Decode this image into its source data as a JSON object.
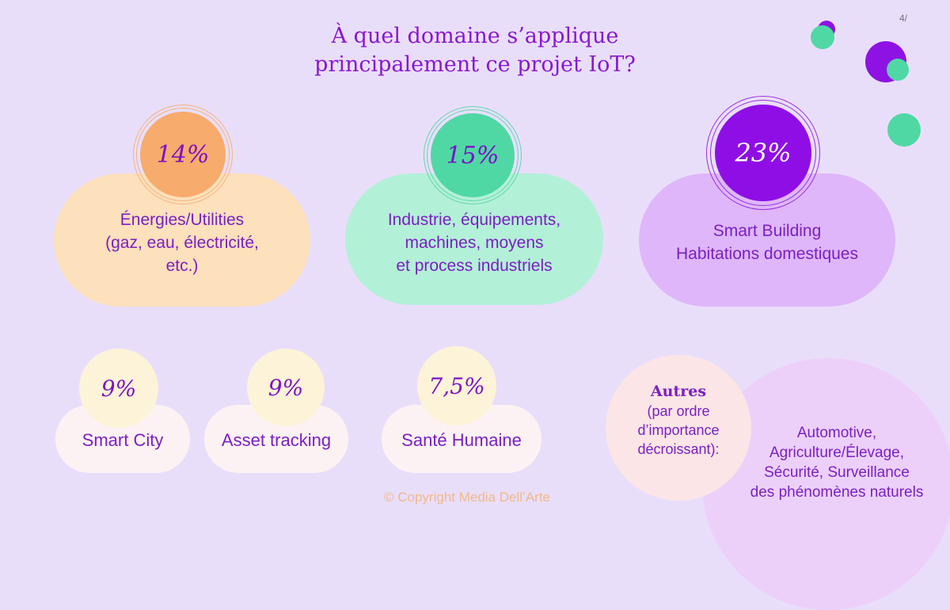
{
  "slide_number": "4/",
  "title_line1": "À quel domaine s’applique",
  "title_line2": "principalement ce projet IoT?",
  "cards": [
    {
      "percent": "14%",
      "line1": "Énergies/Utilities",
      "line2": "(gaz, eau, électricité,",
      "line3": "etc.)",
      "color": "#fde0bc",
      "circle_color": "#f7ab6c"
    },
    {
      "percent": "15%",
      "line1": "Industrie, équipements,",
      "line2": "machines, moyens",
      "line3": "et process industriels",
      "color": "#b3f0d8",
      "circle_color": "#4fd8a4"
    },
    {
      "percent": "23%",
      "line1": "Smart Building",
      "line2": "Habitations domestiques",
      "color": "#deb6f9",
      "circle_color": "#8f0ee6"
    }
  ],
  "small_cards": [
    {
      "percent": "9%",
      "label": "Smart City"
    },
    {
      "percent": "9%",
      "label": "Asset tracking"
    },
    {
      "percent": "7,5%",
      "label": "Santé Humaine"
    }
  ],
  "autres": {
    "title": "Autres",
    "line1": "(par ordre",
    "line2": "d’importance",
    "line3": "décroissant):",
    "list_line1": "Automotive,",
    "list_line2": "Agriculture/Élevage,",
    "list_line3": "Sécurité, Surveillance",
    "list_line4": "des phénomènes naturels"
  },
  "copyright": "© Copyright Media Dell’Arte"
}
